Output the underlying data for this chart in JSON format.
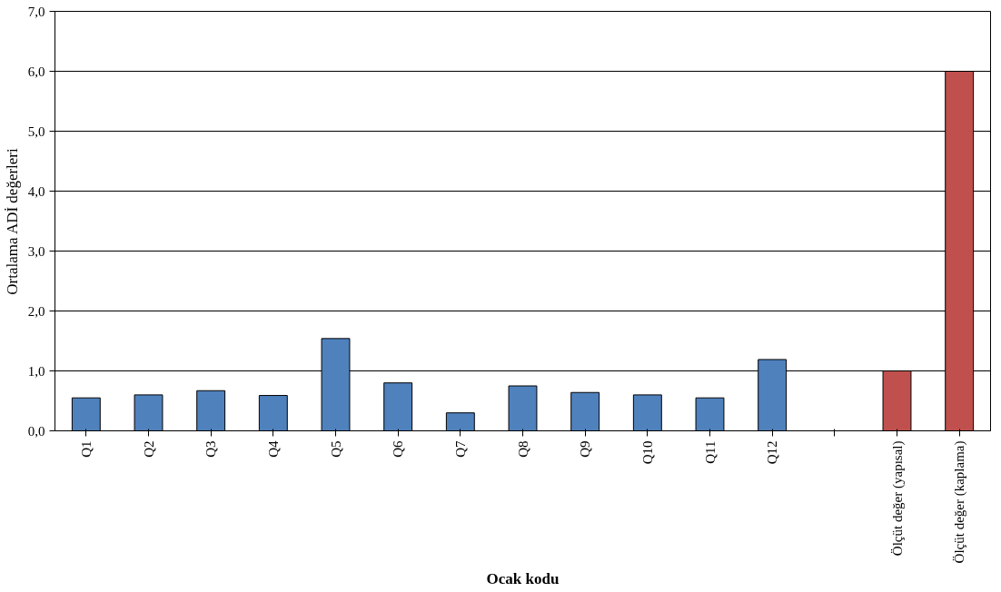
{
  "chart_data": {
    "type": "bar",
    "xlabel": "Ocak kodu",
    "ylabel": "Ortalama ADİ değerleri",
    "categories": [
      "Q1",
      "Q2",
      "Q3",
      "Q4",
      "Q5",
      "Q6",
      "Q7",
      "Q8",
      "Q9",
      "Q10",
      "Q11",
      "Q12",
      null,
      "Ölçüt değer (yapısal)",
      "Ölçüt değer (kaplama)"
    ],
    "values": [
      0.55,
      0.6,
      0.67,
      0.59,
      1.54,
      0.8,
      0.3,
      0.75,
      0.64,
      0.6,
      0.55,
      1.19,
      null,
      1.0,
      6.0
    ],
    "colors": [
      "#4f81bd",
      "#4f81bd",
      "#4f81bd",
      "#4f81bd",
      "#4f81bd",
      "#4f81bd",
      "#4f81bd",
      "#4f81bd",
      "#4f81bd",
      "#4f81bd",
      "#4f81bd",
      "#4f81bd",
      "#4f81bd",
      "#c0504d",
      "#c0504d"
    ],
    "ylim": [
      0,
      7
    ],
    "yticks": [
      {
        "value": 0,
        "label": "0,0"
      },
      {
        "value": 1,
        "label": "1,0"
      },
      {
        "value": 2,
        "label": "2,0"
      },
      {
        "value": 3,
        "label": "3,0"
      },
      {
        "value": 4,
        "label": "4,0"
      },
      {
        "value": 5,
        "label": "5,0"
      },
      {
        "value": 6,
        "label": "6,0"
      },
      {
        "value": 7,
        "label": "7,0"
      }
    ],
    "grid": "y"
  }
}
